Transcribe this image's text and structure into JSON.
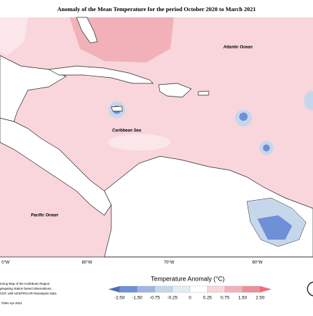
{
  "title": "Anomaly of the Mean Temperature for the period October 2020 to March 2021",
  "map": {
    "labels": [
      "Atlantic Ocean",
      "Caribbean Sea",
      "Pacific Ocean"
    ],
    "longitudes": [
      "0°W",
      "80°W",
      "70°W",
      "60°W"
    ]
  },
  "legend": {
    "title": "Temperature Anomaly (°C)",
    "ticks": [
      "-2.50",
      "-1.50",
      "-0.75",
      "-0.25",
      "0",
      "0.25",
      "0.75",
      "1.50",
      "2.50"
    ],
    "colors": [
      "#4a6bbd",
      "#6f8fd6",
      "#9fb5e6",
      "#c6d7ec",
      "#e2ecf3",
      "#ffffff",
      "#f8d6dc",
      "#f2b1b9",
      "#ef8e98",
      "#f46a78"
    ]
  },
  "footnote": {
    "lines": [
      "toring Map of the Caribbean Region.",
      "gregating station based observations,",
      "CDF, with NCEP/NCAR Reanalysis Data"
    ],
    "credit": "©MH Apr-2021"
  }
}
